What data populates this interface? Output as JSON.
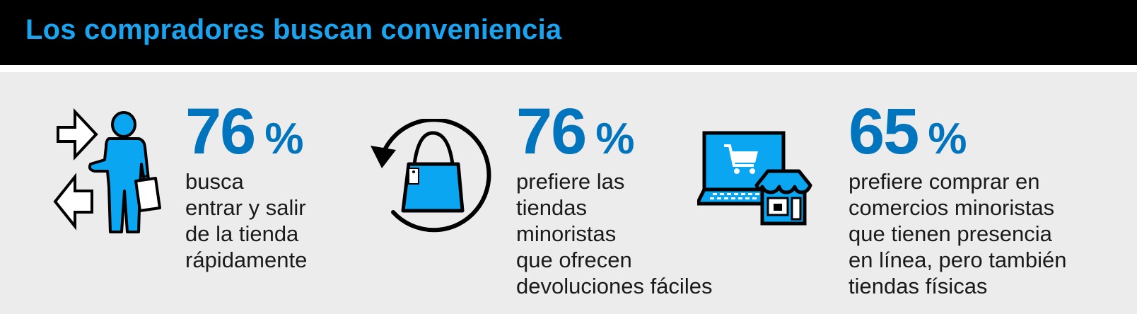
{
  "header": {
    "title": "Los compradores buscan conveniencia"
  },
  "colors": {
    "accent_blue": "#0074bc",
    "icon_blue": "#0aa6f2",
    "header_bg": "#000000",
    "panel_bg": "#ececec"
  },
  "stats": [
    {
      "value": "76",
      "unit": "%",
      "description": "busca\nentrar y salir\nde la tienda\nrápidamente",
      "icon": "shopper-with-arrows-icon"
    },
    {
      "value": "76",
      "unit": "%",
      "description": "prefiere las\ntiendas\nminoristas\nque ofrecen\ndevoluciones fáciles",
      "icon": "shopping-bag-return-icon"
    },
    {
      "value": "65",
      "unit": "%",
      "description": "prefiere comprar en\ncomercios minoristas\nque tienen presencia\nen línea, pero también\ntiendas físicas",
      "icon": "laptop-store-icon"
    }
  ]
}
